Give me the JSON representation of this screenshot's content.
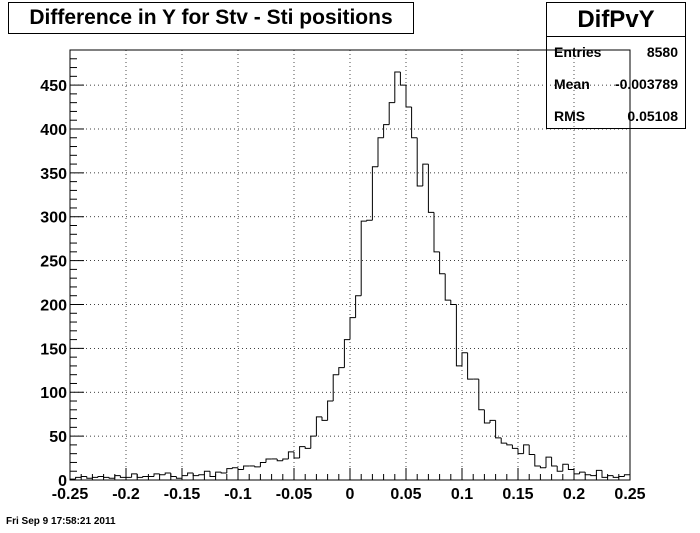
{
  "title": "Difference in Y for Stv - Sti positions",
  "stats": {
    "name": "DifPvY",
    "entries_label": "Entries",
    "entries_value": "8580",
    "mean_label": "Mean",
    "mean_value": "-0.003789",
    "rms_label": "RMS",
    "rms_value": "0.05108"
  },
  "timestamp": "Fri Sep  9 17:58:21 2011",
  "chart_data": {
    "type": "bar",
    "title": "Difference in Y for Stv - Sti positions",
    "xlabel": "",
    "ylabel": "",
    "xlim": [
      -0.25,
      0.25
    ],
    "ylim": [
      0,
      490
    ],
    "grid": true,
    "x_ticks": [
      "-0.25",
      "-0.2",
      "-0.15",
      "-0.1",
      "-0.05",
      "0",
      "0.05",
      "0.1",
      "0.15",
      "0.2",
      "0.25"
    ],
    "y_ticks": [
      "0",
      "50",
      "100",
      "150",
      "200",
      "250",
      "300",
      "350",
      "400",
      "450"
    ],
    "bin_edges": {
      "start": -0.25,
      "width": 0.005,
      "count": 100
    },
    "values": [
      1,
      3,
      4,
      2,
      3,
      4,
      3,
      2,
      5,
      3,
      3,
      7,
      3,
      4,
      4,
      7,
      6,
      8,
      4,
      2,
      5,
      8,
      5,
      6,
      10,
      4,
      9,
      8,
      13,
      14,
      12,
      16,
      16,
      15,
      20,
      24,
      24,
      22,
      24,
      32,
      25,
      38,
      36,
      50,
      72,
      68,
      90,
      120,
      128,
      160,
      185,
      210,
      295,
      296,
      357,
      390,
      405,
      430,
      465,
      450,
      425,
      390,
      335,
      360,
      305,
      260,
      235,
      205,
      200,
      130,
      145,
      115,
      115,
      80,
      65,
      68,
      48,
      42,
      40,
      36,
      30,
      40,
      29,
      16,
      14,
      26,
      16,
      10,
      18,
      12,
      7,
      9,
      6,
      5,
      11,
      3,
      5,
      3,
      4,
      6
    ]
  }
}
